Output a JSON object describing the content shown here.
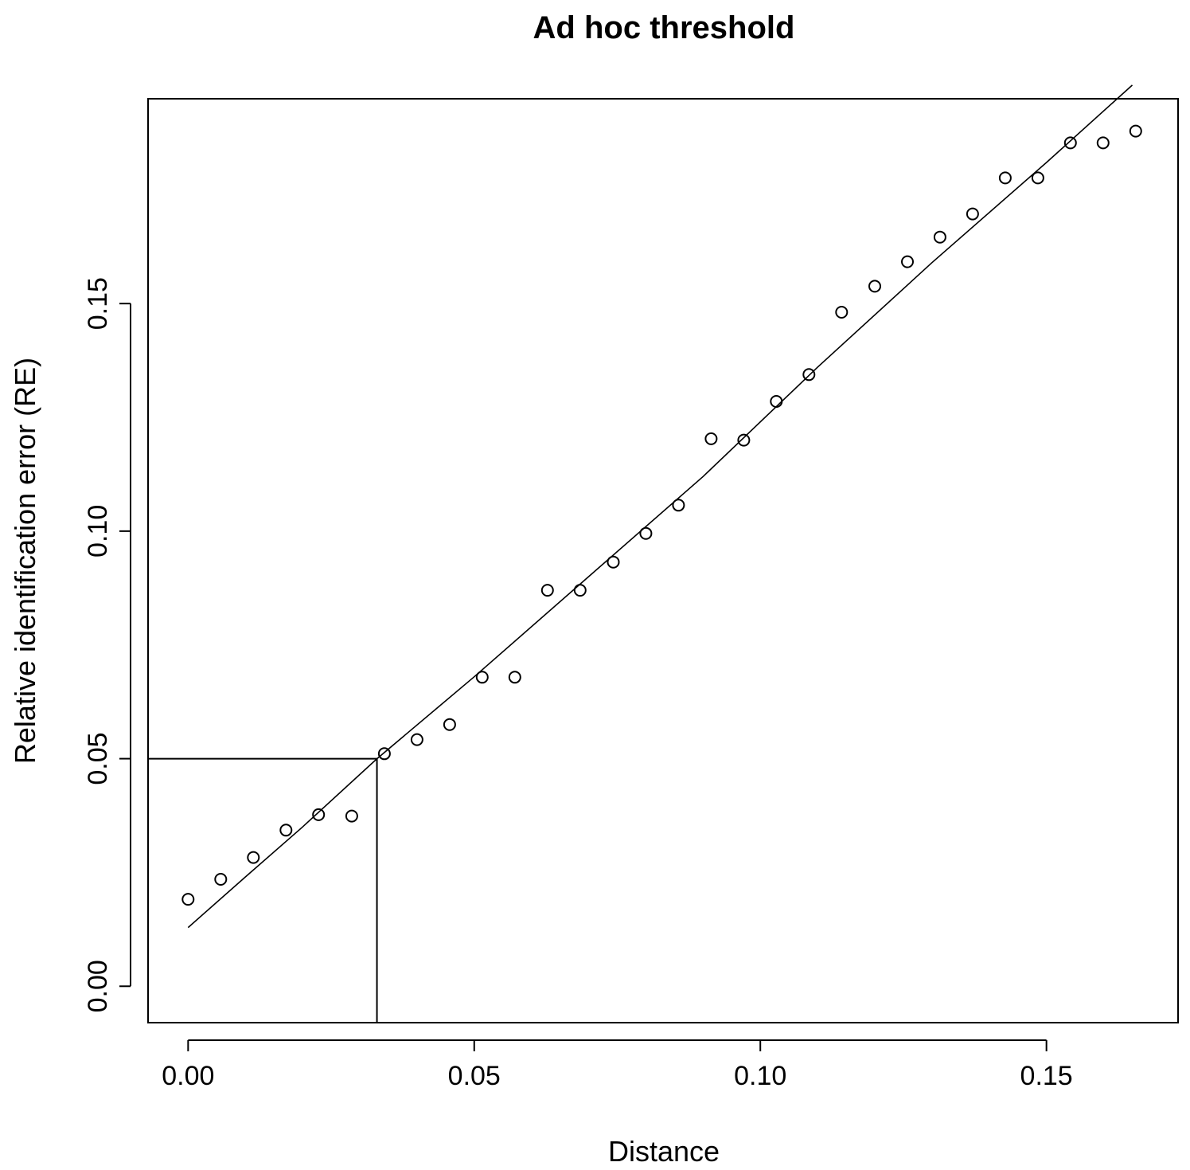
{
  "chart_data": {
    "type": "scatter",
    "title": "Ad hoc threshold",
    "xlabel": "Distance",
    "ylabel": "Relative identification error (RE)",
    "xlim": [
      -0.007,
      0.173
    ],
    "ylim": [
      -0.008,
      0.195
    ],
    "x_ticks": [
      0.0,
      0.05,
      0.1,
      0.15
    ],
    "x_tick_labels": [
      "0.00",
      "0.05",
      "0.10",
      "0.15"
    ],
    "y_ticks": [
      0.0,
      0.05,
      0.1,
      0.15
    ],
    "y_tick_labels": [
      "0.00",
      "0.05",
      "0.10",
      "0.15"
    ],
    "grid": false,
    "legend": "none",
    "series": [
      {
        "kind": "points",
        "x": [
          0.0,
          0.0057,
          0.0114,
          0.0171,
          0.0228,
          0.0286,
          0.0343,
          0.04,
          0.0457,
          0.0514,
          0.0571,
          0.0628,
          0.0685,
          0.0743,
          0.08,
          0.0857,
          0.0914,
          0.0971,
          0.1028,
          0.1085,
          0.1142,
          0.12,
          0.1257,
          0.1314,
          0.1371,
          0.1428,
          0.1485,
          0.1542,
          0.1599,
          0.1656
        ],
        "y": [
          0.0191,
          0.0235,
          0.0283,
          0.0343,
          0.0377,
          0.0374,
          0.0511,
          0.0542,
          0.0575,
          0.0679,
          0.0679,
          0.087,
          0.087,
          0.0932,
          0.0995,
          0.1057,
          0.1203,
          0.12,
          0.1285,
          0.1344,
          0.1481,
          0.1538,
          0.1592,
          0.1646,
          0.1697,
          0.1776,
          0.1776,
          0.1853,
          0.1853,
          0.1879
        ]
      },
      {
        "kind": "fit-line",
        "x": [
          0.0,
          0.01,
          0.02,
          0.033,
          0.05,
          0.07,
          0.09,
          0.11,
          0.13,
          0.15,
          0.165
        ],
        "y": [
          0.0129,
          0.024,
          0.035,
          0.05,
          0.068,
          0.09,
          0.112,
          0.136,
          0.159,
          0.181,
          0.198
        ]
      }
    ],
    "reference_lines": [
      {
        "kind": "horizontal",
        "y": 0.05,
        "x_from": -0.007,
        "x_to": 0.033
      },
      {
        "kind": "vertical",
        "x": 0.033,
        "y_from": -0.008,
        "y_to": 0.05
      }
    ]
  }
}
